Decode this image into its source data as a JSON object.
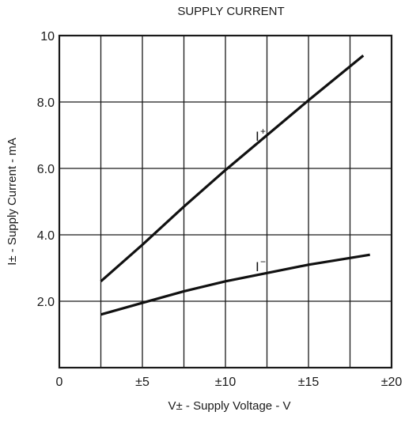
{
  "chart_data": {
    "type": "line",
    "title": "SUPPLY CURRENT",
    "xlabel": "V± - Supply Voltage - V",
    "ylabel": "I± - Supply Current - mA",
    "xlim": [
      0,
      20
    ],
    "ylim": [
      0,
      10
    ],
    "grid": true,
    "x_ticks": [
      {
        "value": 0,
        "label": "0"
      },
      {
        "value": 5,
        "label": "±5"
      },
      {
        "value": 10,
        "label": "±10"
      },
      {
        "value": 15,
        "label": "±15"
      },
      {
        "value": 20,
        "label": "±20"
      }
    ],
    "y_ticks": [
      {
        "value": 2,
        "label": "2.0"
      },
      {
        "value": 4,
        "label": "4.0"
      },
      {
        "value": 6,
        "label": "6.0"
      },
      {
        "value": 8,
        "label": "8.0"
      },
      {
        "value": 10,
        "label": "10"
      }
    ],
    "series": [
      {
        "name": "I",
        "name_superscript": "+",
        "x": [
          2.5,
          5,
          7.5,
          10,
          12.5,
          15,
          18.3
        ],
        "y": [
          2.6,
          3.7,
          4.85,
          5.95,
          7.0,
          8.05,
          9.4
        ]
      },
      {
        "name": "I",
        "name_superscript": "−",
        "x": [
          2.5,
          5,
          7.5,
          10,
          12.5,
          15,
          18.7
        ],
        "y": [
          1.6,
          1.95,
          2.3,
          2.6,
          2.85,
          3.1,
          3.4
        ]
      }
    ]
  }
}
